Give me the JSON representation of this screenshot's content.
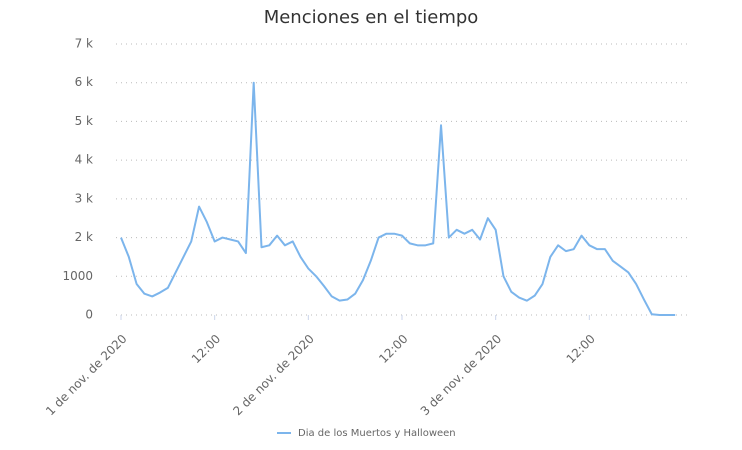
{
  "chart_data": {
    "type": "line",
    "title": "Menciones en el tiempo",
    "x": [
      0,
      1,
      2,
      3,
      4,
      5,
      6,
      7,
      8,
      9,
      10,
      11,
      12,
      13,
      14,
      15,
      16,
      17,
      18,
      19,
      20,
      21,
      22,
      23,
      24,
      25,
      26,
      27,
      28,
      29,
      30,
      31,
      32,
      33,
      34,
      35,
      36,
      37,
      38,
      39,
      40,
      41,
      42,
      43,
      44,
      45,
      46,
      47,
      48,
      49,
      50,
      51,
      52,
      53,
      54,
      55,
      56,
      57,
      58,
      59,
      60,
      61,
      62,
      63,
      64,
      65,
      66,
      67,
      68,
      69,
      70,
      71
    ],
    "series": [
      {
        "name": "Dia de los Muertos y Halloween",
        "color": "#7cb5ec",
        "values": [
          2000,
          1500,
          800,
          550,
          480,
          580,
          700,
          1100,
          1500,
          1900,
          2800,
          2400,
          1900,
          2000,
          1950,
          1900,
          1600,
          6000,
          1750,
          1800,
          2050,
          1800,
          1900,
          1500,
          1200,
          1000,
          750,
          480,
          370,
          400,
          550,
          900,
          1400,
          2000,
          2100,
          2100,
          2050,
          1850,
          1800,
          1800,
          1850,
          4900,
          2000,
          2200,
          2100,
          2200,
          1950,
          2500,
          2200,
          1000,
          600,
          450,
          370,
          500,
          800,
          1500,
          1800,
          1650,
          1700,
          2050,
          1800,
          1700,
          1700,
          1400,
          1250,
          1100,
          800,
          400,
          20,
          0,
          0,
          0
        ]
      }
    ],
    "xlim": [
      0,
      72
    ],
    "xticks": [
      {
        "value": 0,
        "label": "1 de nov. de 2020"
      },
      {
        "value": 12,
        "label": "12:00"
      },
      {
        "value": 24,
        "label": "2 de nov. de 2020"
      },
      {
        "value": 36,
        "label": "12:00"
      },
      {
        "value": 48,
        "label": "3 de nov. de 2020"
      },
      {
        "value": 60,
        "label": "12:00"
      }
    ],
    "ylim": [
      0,
      7000
    ],
    "yticks": [
      0,
      1000,
      {
        "value": 2000,
        "label": "2 k"
      },
      {
        "value": 3000,
        "label": "3 k"
      },
      {
        "value": 4000,
        "label": "4 k"
      },
      {
        "value": 5000,
        "label": "5 k"
      },
      {
        "value": 6000,
        "label": "6 k"
      },
      {
        "value": 7000,
        "label": "7 k"
      }
    ],
    "grid": true
  }
}
